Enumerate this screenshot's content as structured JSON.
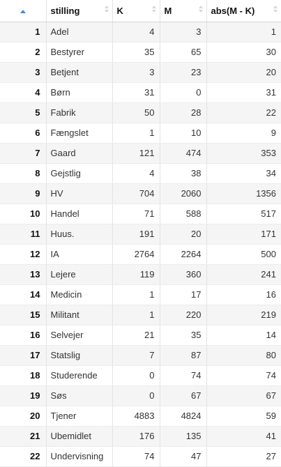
{
  "table": {
    "sort_column": "index",
    "sort_direction": "ascending",
    "columns": [
      "stilling",
      "K",
      "M",
      "abs(M - K)"
    ],
    "rows": [
      {
        "idx": "1",
        "stilling": "Adel",
        "K": "4",
        "M": "3",
        "abs": "1"
      },
      {
        "idx": "2",
        "stilling": "Bestyrer",
        "K": "35",
        "M": "65",
        "abs": "30"
      },
      {
        "idx": "3",
        "stilling": "Betjent",
        "K": "3",
        "M": "23",
        "abs": "20"
      },
      {
        "idx": "4",
        "stilling": "Børn",
        "K": "31",
        "M": "0",
        "abs": "31"
      },
      {
        "idx": "5",
        "stilling": "Fabrik",
        "K": "50",
        "M": "28",
        "abs": "22"
      },
      {
        "idx": "6",
        "stilling": "Fængslet",
        "K": "1",
        "M": "10",
        "abs": "9"
      },
      {
        "idx": "7",
        "stilling": "Gaard",
        "K": "121",
        "M": "474",
        "abs": "353"
      },
      {
        "idx": "8",
        "stilling": "Gejstlig",
        "K": "4",
        "M": "38",
        "abs": "34"
      },
      {
        "idx": "9",
        "stilling": "HV",
        "K": "704",
        "M": "2060",
        "abs": "1356"
      },
      {
        "idx": "10",
        "stilling": "Handel",
        "K": "71",
        "M": "588",
        "abs": "517"
      },
      {
        "idx": "11",
        "stilling": "Huus.",
        "K": "191",
        "M": "20",
        "abs": "171"
      },
      {
        "idx": "12",
        "stilling": "IA",
        "K": "2764",
        "M": "2264",
        "abs": "500"
      },
      {
        "idx": "13",
        "stilling": "Lejere",
        "K": "119",
        "M": "360",
        "abs": "241"
      },
      {
        "idx": "14",
        "stilling": "Medicin",
        "K": "1",
        "M": "17",
        "abs": "16"
      },
      {
        "idx": "15",
        "stilling": "Militant",
        "K": "1",
        "M": "220",
        "abs": "219"
      },
      {
        "idx": "16",
        "stilling": "Selvejer",
        "K": "21",
        "M": "35",
        "abs": "14"
      },
      {
        "idx": "17",
        "stilling": "Statslig",
        "K": "7",
        "M": "87",
        "abs": "80"
      },
      {
        "idx": "18",
        "stilling": "Studerende",
        "K": "0",
        "M": "74",
        "abs": "74"
      },
      {
        "idx": "19",
        "stilling": "Søs",
        "K": "0",
        "M": "67",
        "abs": "67"
      },
      {
        "idx": "20",
        "stilling": "Tjener",
        "K": "4883",
        "M": "4824",
        "abs": "59"
      },
      {
        "idx": "21",
        "stilling": "Ubemidlet",
        "K": "176",
        "M": "135",
        "abs": "41"
      },
      {
        "idx": "22",
        "stilling": "Undervisning",
        "K": "74",
        "M": "47",
        "abs": "27"
      }
    ]
  },
  "colors": {
    "sort_active": "#3c8dde",
    "sort_inactive": "#d6d6d6",
    "row_stripe": "#f5f5f5"
  }
}
